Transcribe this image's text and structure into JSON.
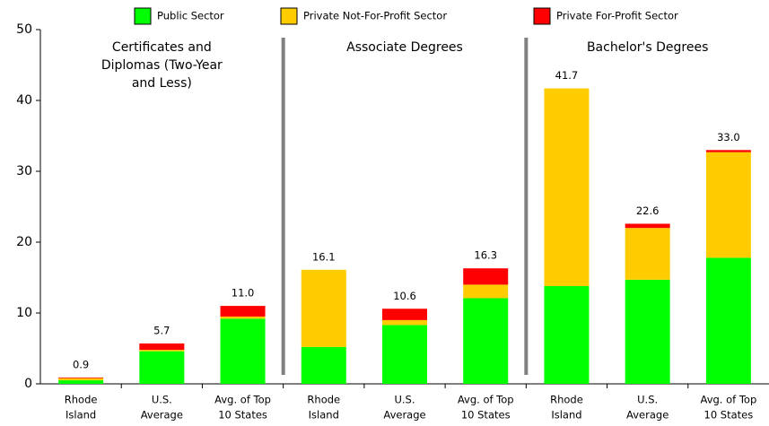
{
  "chart_data": {
    "type": "stacked-bar",
    "categories": [
      [
        "Rhode",
        "Island"
      ],
      [
        "U.S.",
        "Average"
      ],
      [
        "Avg. of Top",
        "10 States"
      ],
      [
        "Rhode",
        "Island"
      ],
      [
        "U.S.",
        "Average"
      ],
      [
        "Avg. of Top",
        "10 States"
      ],
      [
        "Rhode",
        "Island"
      ],
      [
        "U.S.",
        "Average"
      ],
      [
        "Avg. of Top",
        "10 States"
      ]
    ],
    "series": [
      {
        "name": "Public Sector",
        "color": "#00ff00",
        "values": [
          0.5,
          4.6,
          9.2,
          5.2,
          8.3,
          12.1,
          13.8,
          14.7,
          17.8
        ]
      },
      {
        "name": "Private Not-For-Profit Sector",
        "color": "#ffcc00",
        "values": [
          0.3,
          0.2,
          0.3,
          10.9,
          0.7,
          1.9,
          27.9,
          7.3,
          14.9
        ]
      },
      {
        "name": "Private For-Profit Sector",
        "color": "#ff0000",
        "values": [
          0.1,
          0.9,
          1.5,
          0,
          1.6,
          2.3,
          0,
          0.6,
          0.3
        ]
      }
    ],
    "totals": [
      0.9,
      5.7,
      11.0,
      16.1,
      10.6,
      16.3,
      41.7,
      22.6,
      33.0
    ],
    "total_labels": [
      "0.9",
      "5.7",
      "11.0",
      "16.1",
      "10.6",
      "16.3",
      "41.7",
      "22.6",
      "33.0"
    ],
    "groups": [
      {
        "label": [
          "Certificates and",
          "Diplomas (Two-Year",
          "and Less)"
        ]
      },
      {
        "label": [
          "Associate Degrees"
        ]
      },
      {
        "label": [
          "Bachelor's Degrees"
        ]
      }
    ],
    "ylim": [
      0,
      50
    ],
    "yticks": [
      0,
      10,
      20,
      30,
      40,
      50
    ]
  }
}
